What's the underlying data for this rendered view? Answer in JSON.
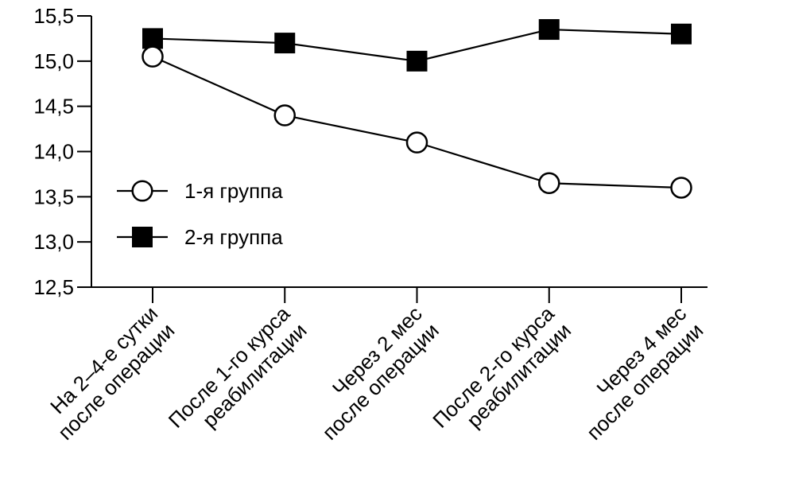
{
  "chart_data": {
    "type": "line",
    "title": "",
    "xlabel": "",
    "ylabel": "",
    "grid": false,
    "background_color": "#ffffff",
    "line_color": "#000000",
    "text_color": "#000000",
    "decimal_separator": ",",
    "ylim": [
      12.5,
      15.5
    ],
    "ytick_step": 0.5,
    "ytick_labels": [
      "12,5",
      "13,0",
      "13,5",
      "14,0",
      "14,5",
      "15,0",
      "15,5"
    ],
    "categories": [
      [
        "На 2–4-е сутки",
        "после операции"
      ],
      [
        "После 1-го курса",
        "реабилитации"
      ],
      [
        "Через 2 мес",
        "после операции"
      ],
      [
        "После 2-го курса",
        "реабилитации"
      ],
      [
        "Через 4 мес",
        "после операции"
      ]
    ],
    "series": [
      {
        "name": "1-я группа",
        "marker": "open-circle",
        "values": [
          15.05,
          14.4,
          14.1,
          13.65,
          13.6
        ]
      },
      {
        "name": "2-я группа",
        "marker": "filled-square",
        "values": [
          15.25,
          15.2,
          15.0,
          15.35,
          15.3
        ]
      }
    ],
    "legend_position": "inside-left"
  }
}
